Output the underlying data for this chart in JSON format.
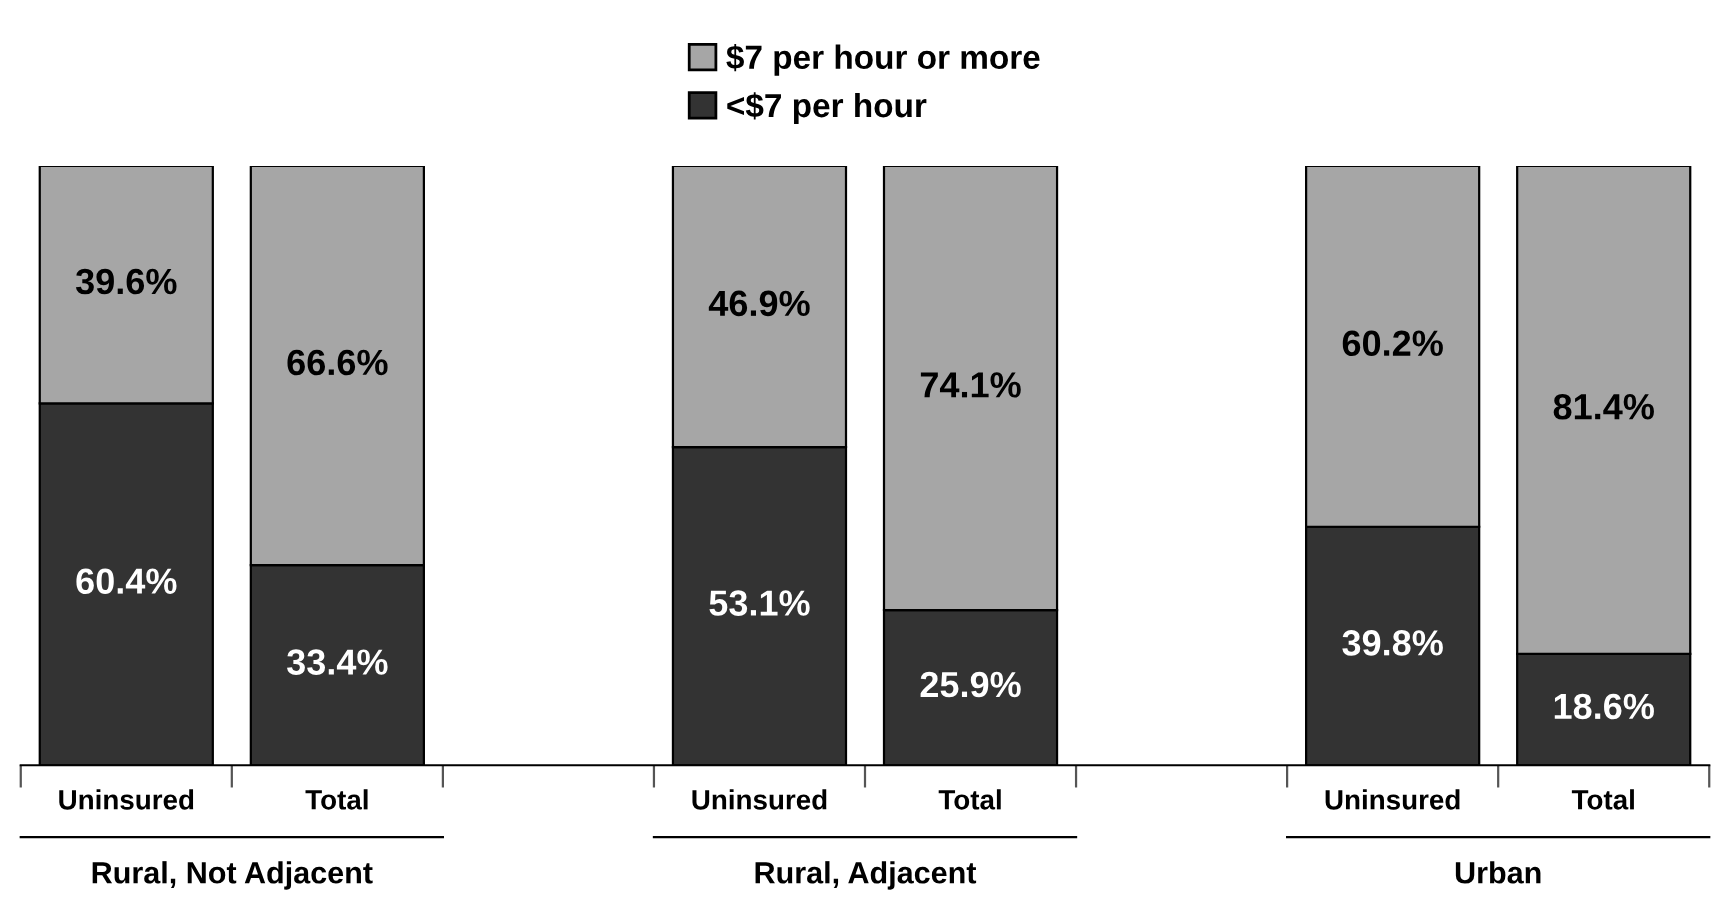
{
  "chart_data": {
    "type": "bar",
    "stacked": true,
    "legend": "top",
    "categories": [
      "Uninsured",
      "Total",
      null,
      "Uninsured",
      "Total",
      null,
      "Uninsured",
      "Total"
    ],
    "ylim": [
      0,
      100
    ],
    "tick_labels": "x",
    "series": [
      {
        "name": "<$7 per hour",
        "color": "#333333",
        "values": [
          60.4,
          33.4,
          null,
          53.1,
          25.9,
          null,
          39.8,
          18.6
        ],
        "value_labels": [
          "60.4%",
          "33.4%",
          null,
          "53.1%",
          "25.9%",
          null,
          "39.8%",
          "18.6%"
        ]
      },
      {
        "name": "$7 per hour or more",
        "color": "#a6a6a6",
        "values": [
          39.6,
          66.6,
          null,
          46.9,
          74.1,
          null,
          60.2,
          81.4
        ],
        "value_labels": [
          "39.6%",
          "66.6%",
          null,
          "46.9%",
          "74.1%",
          null,
          "60.2%",
          "81.4%"
        ]
      }
    ],
    "annotations": [
      "Rural, Not Adjacent",
      "Rural, Adjacent",
      "Urban"
    ]
  }
}
